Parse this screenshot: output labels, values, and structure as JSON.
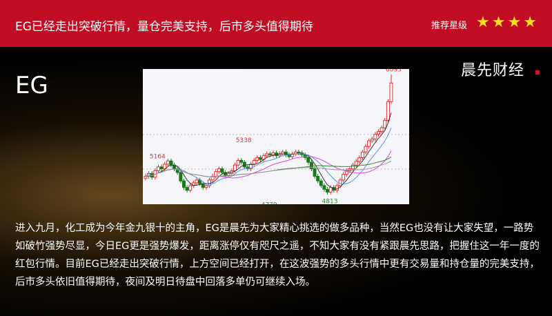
{
  "header": {
    "title": "EG已经走出突破行情，量仓完美支持，后市多头值得期待",
    "rating_label": "推荐星级",
    "stars": 4,
    "star_color": "#f8e11a",
    "bg_color": "#c00d23"
  },
  "brand": "晨先财经",
  "code": "EG",
  "chart_image": {
    "price_labels": [
      {
        "text": "6093",
        "color": "#e03030"
      },
      {
        "text": "5338",
        "color": "#e03030"
      },
      {
        "text": "5164",
        "color": "#e03030"
      },
      {
        "text": "4813",
        "color": "#2a8a2a"
      },
      {
        "text": "4779",
        "color": "#2a8a2a"
      }
    ],
    "closes": [
      5000,
      5030,
      4990,
      5060,
      5100,
      5080,
      5130,
      5164,
      5120,
      5080,
      5040,
      4950,
      4880,
      4850,
      4900,
      4930,
      4960,
      4920,
      4880,
      4900,
      4960,
      5000,
      5050,
      5080,
      5040,
      5010,
      5030,
      5060,
      5120,
      5170,
      5150,
      5100,
      5080,
      5130,
      5170,
      5200,
      5180,
      5220,
      5240,
      5230,
      5250,
      5220,
      5240,
      5260,
      5230,
      5210,
      5240,
      5260,
      5250,
      5230,
      5200,
      5150,
      5080,
      5000,
      4950,
      4900,
      4860,
      4830,
      4880,
      4850,
      4900,
      4960,
      5020,
      5060,
      5080,
      5120,
      5160,
      5200,
      5260,
      5320,
      5380,
      5400,
      5450,
      5480,
      5520,
      5600,
      5800,
      6000
    ]
  },
  "body": "进入九月，化工成为今年金九银十的主角，EG是晨先为大家精心挑选的做多品种，当然EG也没有让大家失望，一路势如破竹强势尽显，今日EG更是强势爆发，距离涨停仅有咫尺之遥，不知大家有没有紧跟晨先思路，把握住这一年一度的红包行情。目前EG已经走出突破行情，上方空间已经打开，在这波强势的多头行情中更有交易量和持仓量的完美支持，后市多头依旧值得期待，夜间及明日待盘中回落多单仍可继续入场。"
}
